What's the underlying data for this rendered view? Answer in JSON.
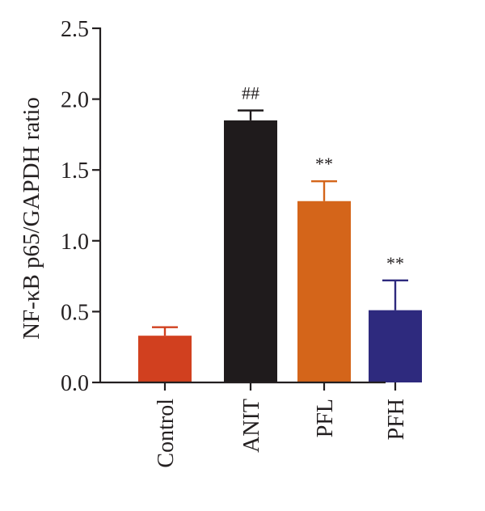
{
  "chart_data": {
    "type": "bar",
    "title": "",
    "xlabel": "",
    "ylabel": "NF-κB p65/GAPDH ratio",
    "ylim": [
      0,
      2.5
    ],
    "yticks": [
      "0.0",
      "0.5",
      "1.0",
      "1.5",
      "2.0",
      "2.5"
    ],
    "categories": [
      "Control",
      "ANIT",
      "PFL",
      "PFH"
    ],
    "values": [
      0.33,
      1.85,
      1.28,
      0.51
    ],
    "errors": [
      0.06,
      0.07,
      0.14,
      0.21
    ],
    "annotations": [
      "",
      "##",
      "**",
      "**"
    ],
    "colors": [
      "#d1401f",
      "#1f1b1c",
      "#d4651a",
      "#2e2a7e"
    ],
    "axis_color": "#231f20",
    "grid": false,
    "legend": "none"
  }
}
